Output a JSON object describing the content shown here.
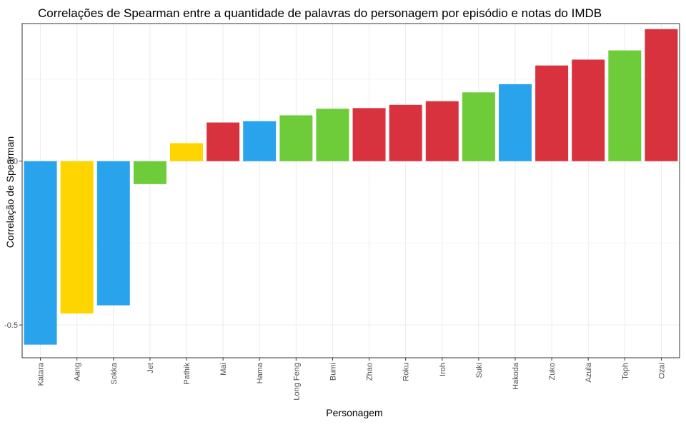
{
  "colors": {
    "water": "#29a3ec",
    "air": "#ffd500",
    "earth": "#6ecb3a",
    "fire": "#d9323f"
  },
  "chart_data": {
    "type": "bar",
    "title": "Correlações de Spearman entre a quantidade de palavras do personagem por episódio e notas do IMDB",
    "xlabel": "Personagem",
    "ylabel": "Correlação de Spearman",
    "ylim": [
      -0.6,
      0.42
    ],
    "yticks": [
      -0.5,
      0.0
    ],
    "ytick_labels": [
      "-0.5",
      "0.0"
    ],
    "grid": true,
    "legend": "none",
    "categories": [
      "Katara",
      "Aang",
      "Sokka",
      "Jet",
      "Pathik",
      "Mai",
      "Hama",
      "Long Feng",
      "Bumi",
      "Zhao",
      "Roku",
      "Iroh",
      "Suki",
      "Hakoda",
      "Zuko",
      "Azula",
      "Toph",
      "Ozai"
    ],
    "values": [
      -0.56,
      -0.465,
      -0.44,
      -0.07,
      0.055,
      0.118,
      0.122,
      0.14,
      0.16,
      0.162,
      0.172,
      0.183,
      0.21,
      0.235,
      0.292,
      0.31,
      0.338,
      0.403
    ],
    "bar_colors": [
      "#29a3ec",
      "#ffd500",
      "#29a3ec",
      "#6ecb3a",
      "#ffd500",
      "#d9323f",
      "#29a3ec",
      "#6ecb3a",
      "#6ecb3a",
      "#d9323f",
      "#d9323f",
      "#d9323f",
      "#6ecb3a",
      "#29a3ec",
      "#d9323f",
      "#d9323f",
      "#6ecb3a",
      "#d9323f"
    ]
  }
}
